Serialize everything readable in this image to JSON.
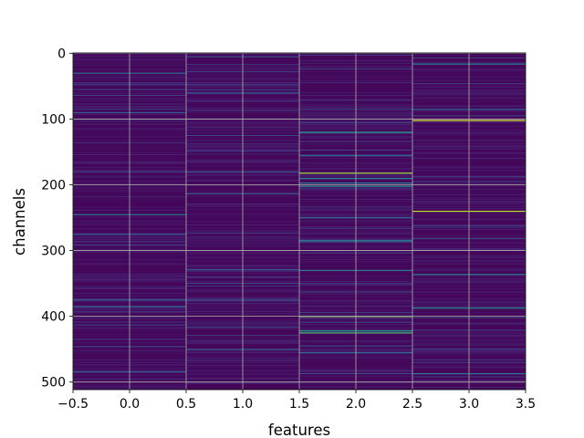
{
  "chart_data": {
    "type": "heatmap",
    "title": "",
    "xlabel": "features",
    "ylabel": "channels",
    "xlim": [
      -0.5,
      3.5
    ],
    "ylim": [
      511.5,
      -0.5
    ],
    "x_ticks": [
      -0.5,
      0.0,
      0.5,
      1.0,
      1.5,
      2.0,
      2.5,
      3.0,
      3.5
    ],
    "x_tick_labels": [
      "−0.5",
      "0.0",
      "0.5",
      "1.0",
      "1.5",
      "2.0",
      "2.5",
      "3.0",
      "3.5"
    ],
    "y_ticks": [
      0,
      100,
      200,
      300,
      400,
      500
    ],
    "y_tick_labels": [
      "0",
      "100",
      "200",
      "300",
      "400",
      "500"
    ],
    "grid": true,
    "colormap": "viridis",
    "colormap_stops": [
      "#440154",
      "#482878",
      "#3e4a89",
      "#31688e",
      "#26828e",
      "#1f9e89",
      "#35b779",
      "#6ece58",
      "#b5de2b",
      "#fde725"
    ],
    "background_color": "#45075a",
    "n_rows": 512,
    "n_cols": 4,
    "highlights": [
      {
        "col": 0,
        "row": 30,
        "value": 0.35
      },
      {
        "col": 0,
        "row": 90,
        "value": 0.3
      },
      {
        "col": 0,
        "row": 245,
        "value": 0.4
      },
      {
        "col": 0,
        "row": 275,
        "value": 0.3
      },
      {
        "col": 0,
        "row": 385,
        "value": 0.35
      },
      {
        "col": 0,
        "row": 484,
        "value": 0.3
      },
      {
        "col": 1,
        "row": 5,
        "value": 0.25
      },
      {
        "col": 1,
        "row": 60,
        "value": 0.3
      },
      {
        "col": 1,
        "row": 180,
        "value": 0.25
      },
      {
        "col": 1,
        "row": 329,
        "value": 0.3
      },
      {
        "col": 1,
        "row": 450,
        "value": 0.3
      },
      {
        "col": 2,
        "row": 120,
        "value": 0.55
      },
      {
        "col": 2,
        "row": 155,
        "value": 0.35
      },
      {
        "col": 2,
        "row": 182,
        "value": 0.85
      },
      {
        "col": 2,
        "row": 190,
        "value": 0.45
      },
      {
        "col": 2,
        "row": 197,
        "value": 0.4
      },
      {
        "col": 2,
        "row": 202,
        "value": 0.5
      },
      {
        "col": 2,
        "row": 250,
        "value": 0.35
      },
      {
        "col": 2,
        "row": 285,
        "value": 0.45
      },
      {
        "col": 2,
        "row": 330,
        "value": 0.4
      },
      {
        "col": 2,
        "row": 400,
        "value": 0.8
      },
      {
        "col": 2,
        "row": 422,
        "value": 0.55
      },
      {
        "col": 2,
        "row": 425,
        "value": 0.7
      },
      {
        "col": 2,
        "row": 455,
        "value": 0.35
      },
      {
        "col": 3,
        "row": 16,
        "value": 0.45
      },
      {
        "col": 3,
        "row": 85,
        "value": 0.35
      },
      {
        "col": 3,
        "row": 102,
        "value": 0.95
      },
      {
        "col": 3,
        "row": 240,
        "value": 0.9
      },
      {
        "col": 3,
        "row": 336,
        "value": 0.4
      },
      {
        "col": 3,
        "row": 387,
        "value": 0.5
      },
      {
        "col": 3,
        "row": 487,
        "value": 0.4
      }
    ]
  }
}
